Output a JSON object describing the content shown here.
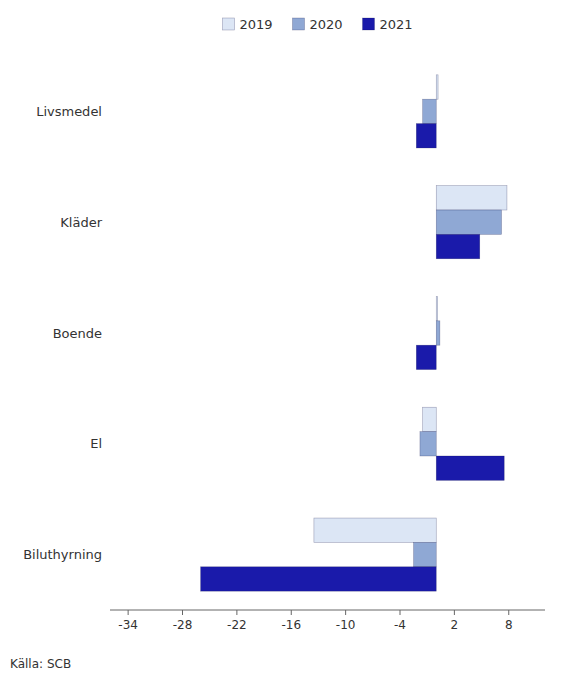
{
  "chart_data": {
    "type": "bar",
    "orientation": "horizontal",
    "categories": [
      "Livsmedel",
      "Kläder",
      "Boende",
      "El",
      "Biluthyrning"
    ],
    "series": [
      {
        "name": "2019",
        "color": "#dce6f5",
        "values": [
          0.2,
          7.8,
          0.15,
          -1.5,
          -13.5
        ]
      },
      {
        "name": "2020",
        "color": "#8fa8d4",
        "values": [
          -1.5,
          7.2,
          0.4,
          -1.8,
          -2.5
        ]
      },
      {
        "name": "2021",
        "color": "#1a1aaa",
        "values": [
          -2.2,
          4.8,
          -2.2,
          7.5,
          -26.0
        ]
      }
    ],
    "xlim": [
      -36,
      12
    ],
    "xticks": [
      -34,
      -28,
      -22,
      -16,
      -10,
      -4,
      2,
      8
    ],
    "legend": "top",
    "annotations": [
      "Källa: SCB"
    ]
  }
}
